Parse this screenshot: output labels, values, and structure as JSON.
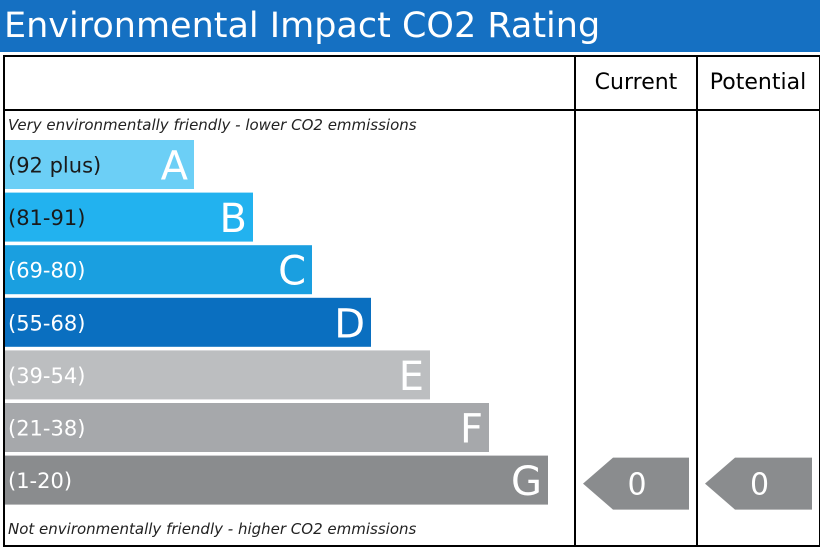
{
  "title": "Environmental Impact CO2 Rating",
  "columns": {
    "current": "Current",
    "potential": "Potential"
  },
  "top_note": "Very environmentally friendly - lower CO2 emmissions",
  "bottom_note": "Not environmentally friendly - higher CO2 emmissions",
  "chart_data": {
    "type": "bar",
    "title": "Environmental Impact CO2 Rating",
    "bands": [
      {
        "letter": "A",
        "range": "(92 plus)",
        "min": 92,
        "max": 100,
        "color": "#6ccff6",
        "label_color": "#1a1a1a"
      },
      {
        "letter": "B",
        "range": "(81-91)",
        "min": 81,
        "max": 91,
        "color": "#22b2ef",
        "label_color": "#1a1a1a"
      },
      {
        "letter": "C",
        "range": "(69-80)",
        "min": 69,
        "max": 80,
        "color": "#1a9fe0",
        "label_color": "#ffffff"
      },
      {
        "letter": "D",
        "range": "(55-68)",
        "min": 55,
        "max": 68,
        "color": "#0a6fc0",
        "label_color": "#ffffff"
      },
      {
        "letter": "E",
        "range": "(39-54)",
        "min": 39,
        "max": 54,
        "color": "#bcbec0",
        "label_color": "#ffffff"
      },
      {
        "letter": "F",
        "range": "(21-38)",
        "min": 21,
        "max": 38,
        "color": "#a6a8ab",
        "label_color": "#ffffff"
      },
      {
        "letter": "G",
        "range": "(1-20)",
        "min": 1,
        "max": 20,
        "color": "#8a8c8e",
        "label_color": "#ffffff"
      }
    ],
    "current": {
      "value": "0",
      "band": "G"
    },
    "potential": {
      "value": "0",
      "band": "G"
    },
    "pointer_color": "#8a8c8e"
  }
}
